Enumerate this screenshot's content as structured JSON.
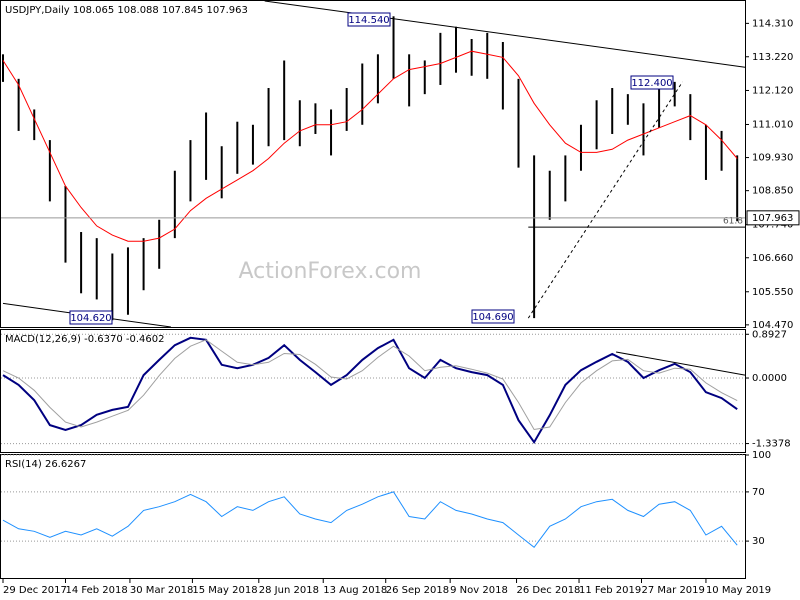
{
  "chart_data": [
    {
      "type": "ohlc",
      "title": "USDJPY,Daily  108.065 108.088 107.845 107.963",
      "watermark": "ActionForex.com",
      "xlim": [
        0,
        380
      ],
      "ylim": [
        104.4,
        115.04
      ],
      "yticks": [
        {
          "value": 114.31,
          "label": "114.310"
        },
        {
          "value": 113.22,
          "label": "113.220"
        },
        {
          "value": 112.12,
          "label": "112.120"
        },
        {
          "value": 111.01,
          "label": "111.010"
        },
        {
          "value": 109.93,
          "label": "109.930"
        },
        {
          "value": 108.85,
          "label": "108.850"
        },
        {
          "value": 107.74,
          "label": "107.740"
        },
        {
          "value": 106.66,
          "label": "106.660"
        },
        {
          "value": 105.55,
          "label": "105.550"
        },
        {
          "value": 104.47,
          "label": "104.470"
        }
      ],
      "last_price": {
        "value": 107.963,
        "label": "107.963"
      },
      "annotations": [
        "114.540",
        "112.400",
        "104.620",
        "104.690"
      ],
      "bar_color": "#000000",
      "x": [
        0,
        8,
        16,
        24,
        32,
        40,
        48,
        56,
        64,
        72,
        80,
        88,
        96,
        104,
        112,
        120,
        128,
        136,
        144,
        152,
        160,
        168,
        176,
        184,
        192,
        200,
        208,
        216,
        224,
        232,
        240,
        248,
        256,
        264,
        272,
        280,
        288,
        296,
        304,
        312,
        320,
        328,
        336,
        344,
        352,
        360,
        368,
        376
      ],
      "high": [
        113.3,
        112.5,
        111.5,
        110.5,
        109.0,
        107.5,
        107.3,
        106.8,
        107.0,
        107.3,
        107.9,
        109.5,
        110.5,
        111.4,
        110.3,
        111.1,
        111.0,
        112.2,
        113.1,
        111.8,
        111.7,
        111.5,
        112.2,
        113.0,
        113.3,
        114.54,
        113.3,
        113.1,
        114.0,
        114.2,
        113.8,
        114.0,
        113.7,
        112.5,
        110.0,
        109.5,
        110.0,
        111.0,
        111.8,
        112.2,
        112.0,
        111.7,
        112.2,
        112.4,
        112.0,
        111.0,
        110.8,
        110.0
      ],
      "low": [
        112.4,
        110.8,
        110.5,
        108.5,
        106.5,
        105.5,
        105.3,
        104.62,
        104.8,
        105.6,
        106.3,
        107.3,
        108.5,
        109.2,
        108.6,
        109.4,
        109.7,
        110.3,
        110.5,
        110.3,
        110.7,
        110.0,
        110.8,
        111.0,
        111.7,
        112.5,
        111.6,
        112.0,
        112.3,
        112.7,
        112.6,
        112.5,
        111.5,
        109.6,
        104.69,
        107.9,
        108.5,
        109.5,
        110.2,
        110.7,
        111.0,
        110.0,
        110.9,
        111.6,
        110.5,
        109.2,
        109.5,
        107.85
      ],
      "series": [
        {
          "color": "#ff0000",
          "width": 1,
          "values": [
            113.1,
            112.3,
            111.2,
            110.1,
            109.0,
            108.3,
            107.7,
            107.4,
            107.2,
            107.2,
            107.3,
            107.6,
            108.2,
            108.6,
            108.9,
            109.2,
            109.5,
            109.9,
            110.4,
            110.8,
            111.0,
            111.0,
            111.1,
            111.5,
            112.0,
            112.5,
            112.8,
            112.9,
            113.0,
            113.2,
            113.4,
            113.3,
            113.2,
            112.6,
            111.7,
            111.0,
            110.4,
            110.1,
            110.1,
            110.2,
            110.5,
            110.7,
            110.9,
            111.1,
            111.3,
            111.0,
            110.5,
            109.9
          ]
        }
      ],
      "trendlines": [
        {
          "x": [
            134,
            380
          ],
          "y": [
            115.04,
            112.88
          ],
          "style": "solid"
        },
        {
          "x": [
            0,
            86
          ],
          "y": [
            105.17,
            104.4
          ],
          "style": "solid"
        },
        {
          "x": [
            269,
            348
          ],
          "y": [
            104.69,
            112.4
          ],
          "style": "dotted"
        },
        {
          "x": [
            269,
            380
          ],
          "y": [
            107.66,
            107.66
          ],
          "style": "solid",
          "label": "61.8"
        }
      ]
    },
    {
      "type": "line",
      "title": "MACD(12,26,9) -0.6370 -0.4602",
      "ylim": [
        -1.51,
        0.98
      ],
      "yticks": [
        {
          "value": 0.8927,
          "label": "0.8927"
        },
        {
          "value": 0,
          "label": "0.0000"
        },
        {
          "value": -1.3378,
          "label": "-1.3378"
        }
      ],
      "series": [
        {
          "color": "#000080",
          "width": 2,
          "values": [
            0.06,
            -0.14,
            -0.45,
            -0.96,
            -1.06,
            -0.96,
            -0.75,
            -0.65,
            -0.59,
            0.06,
            0.37,
            0.67,
            0.82,
            0.78,
            0.27,
            0.2,
            0.27,
            0.41,
            0.67,
            0.37,
            0.12,
            -0.14,
            0.06,
            0.37,
            0.61,
            0.78,
            0.2,
            0,
            0.37,
            0.2,
            0.12,
            0.06,
            -0.14,
            -0.86,
            -1.31,
            -0.76,
            -0.14,
            0.16,
            0.33,
            0.49,
            0.33,
            0,
            0.16,
            0.29,
            0.12,
            -0.29,
            -0.41,
            -0.637
          ]
        },
        {
          "color": "#a0a0a0",
          "width": 1,
          "values": [
            0.15,
            0.0,
            -0.25,
            -0.6,
            -0.9,
            -1.0,
            -0.9,
            -0.78,
            -0.66,
            -0.35,
            0.05,
            0.4,
            0.65,
            0.78,
            0.55,
            0.32,
            0.27,
            0.32,
            0.5,
            0.48,
            0.28,
            0.02,
            -0.02,
            0.15,
            0.42,
            0.65,
            0.45,
            0.15,
            0.22,
            0.25,
            0.18,
            0.1,
            -0.02,
            -0.5,
            -1.05,
            -1.0,
            -0.5,
            -0.1,
            0.15,
            0.35,
            0.38,
            0.15,
            0.1,
            0.2,
            0.18,
            -0.1,
            -0.3,
            -0.4602
          ]
        }
      ],
      "trendlines": [
        {
          "x": [
            314,
            380
          ],
          "y": [
            0.53,
            0.06
          ],
          "style": "solid"
        }
      ],
      "grid": true
    },
    {
      "type": "line",
      "title": "RSI(14) 26.6267",
      "ylim": [
        0,
        100
      ],
      "yticks": [
        100,
        70,
        30
      ],
      "series": [
        {
          "color": "#1e90ff",
          "width": 1,
          "values": [
            47,
            40,
            38,
            33,
            38,
            35,
            40,
            34,
            42,
            55,
            58,
            62,
            68,
            62,
            50,
            58,
            55,
            62,
            66,
            52,
            48,
            45,
            55,
            60,
            66,
            70,
            50,
            48,
            62,
            55,
            52,
            48,
            45,
            35,
            25,
            42,
            48,
            58,
            62,
            64,
            55,
            50,
            60,
            62,
            55,
            35,
            42,
            26.6267
          ]
        }
      ],
      "grid": true,
      "xticks": [
        {
          "value": 0,
          "label": "29 Dec 2017"
        },
        {
          "value": 32,
          "label": "14 Feb 2018"
        },
        {
          "value": 65,
          "label": "30 Mar 2018"
        },
        {
          "value": 97,
          "label": "15 May 2018"
        },
        {
          "value": 131,
          "label": "28 Jun 2018"
        },
        {
          "value": 164,
          "label": "13 Aug 2018"
        },
        {
          "value": 196,
          "label": "26 Sep 2018"
        },
        {
          "value": 229,
          "label": "9 Nov 2018"
        },
        {
          "value": 263,
          "label": "26 Dec 2018"
        },
        {
          "value": 295,
          "label": "11 Feb 2019"
        },
        {
          "value": 327,
          "label": "27 Mar 2019"
        },
        {
          "value": 360,
          "label": "10 May 2019"
        }
      ]
    }
  ]
}
